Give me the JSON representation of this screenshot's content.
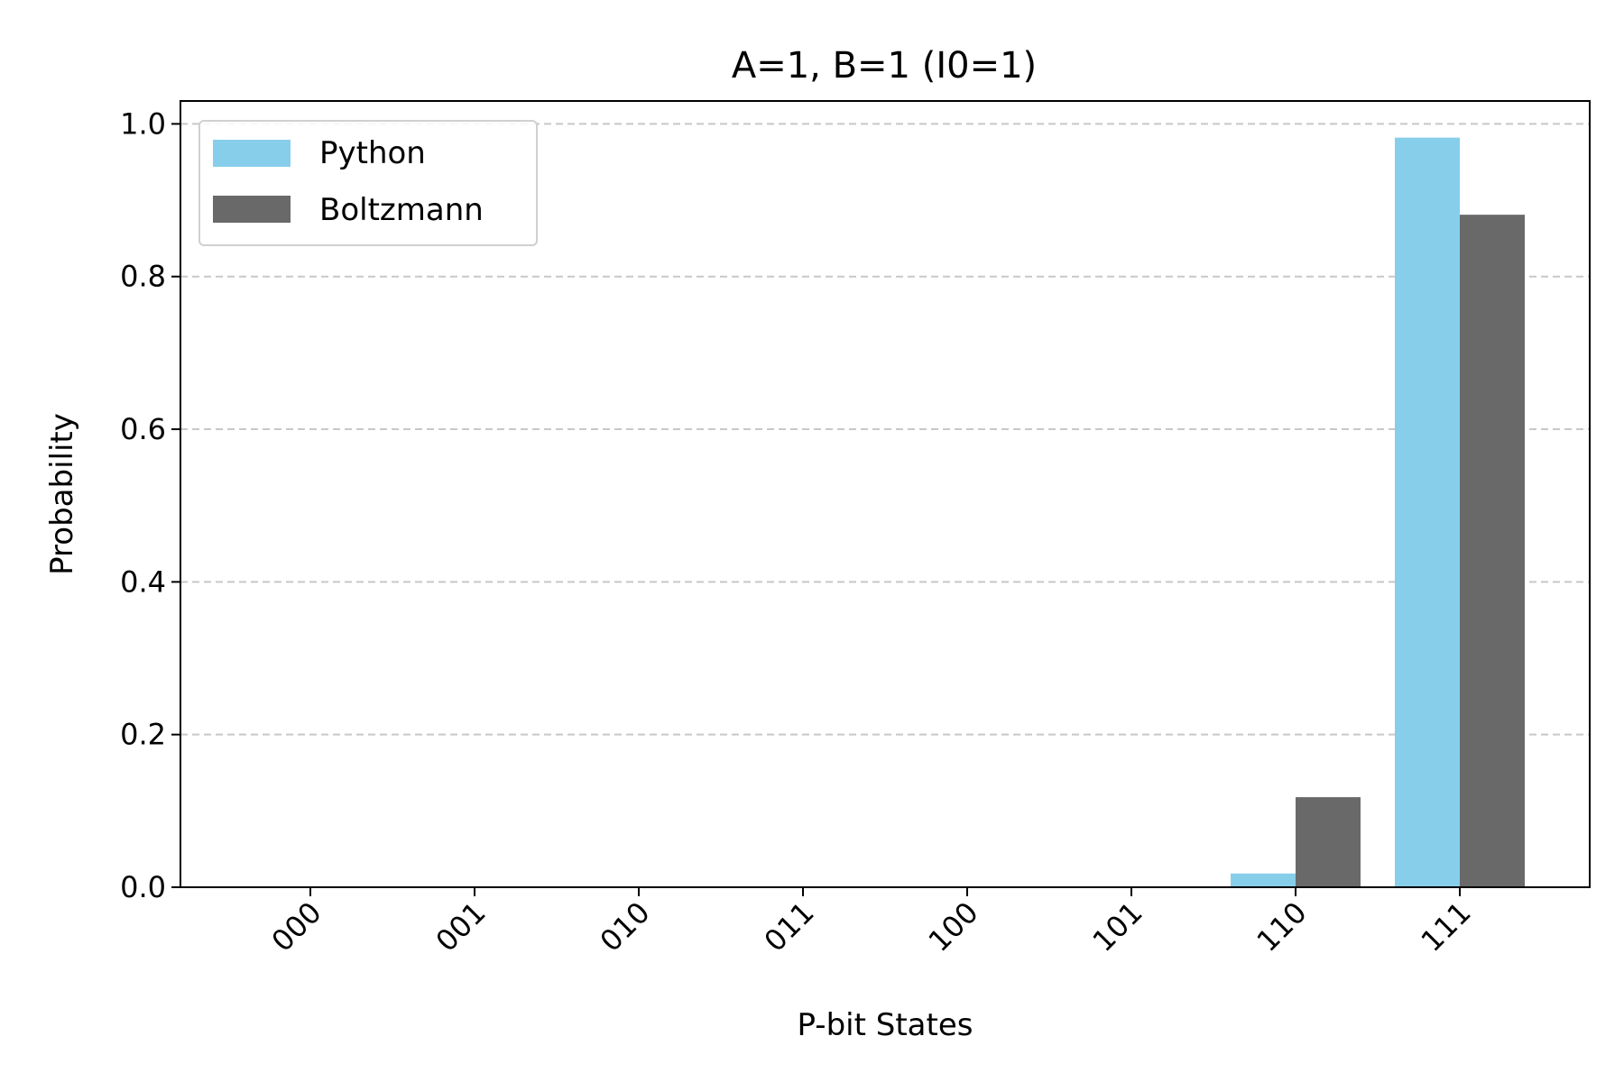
{
  "chart_data": {
    "type": "bar",
    "title": "A=1, B=1 (I0=1)",
    "xlabel": "P-bit States",
    "ylabel": "Probability",
    "categories": [
      "000",
      "001",
      "010",
      "011",
      "100",
      "101",
      "110",
      "111"
    ],
    "series": [
      {
        "name": "Python",
        "color": "#87ceeb",
        "values": [
          0,
          0,
          0,
          0,
          0,
          0,
          0.018,
          0.982
        ]
      },
      {
        "name": "Boltzmann",
        "color": "#696969",
        "values": [
          0,
          0,
          0,
          0,
          0,
          0,
          0.118,
          0.881
        ]
      }
    ],
    "ylim": [
      0,
      1.03
    ],
    "yticks": [
      "0.0",
      "0.2",
      "0.4",
      "0.6",
      "0.8",
      "1.0"
    ],
    "grid": "y-dashed",
    "legend_position": "top-left"
  }
}
